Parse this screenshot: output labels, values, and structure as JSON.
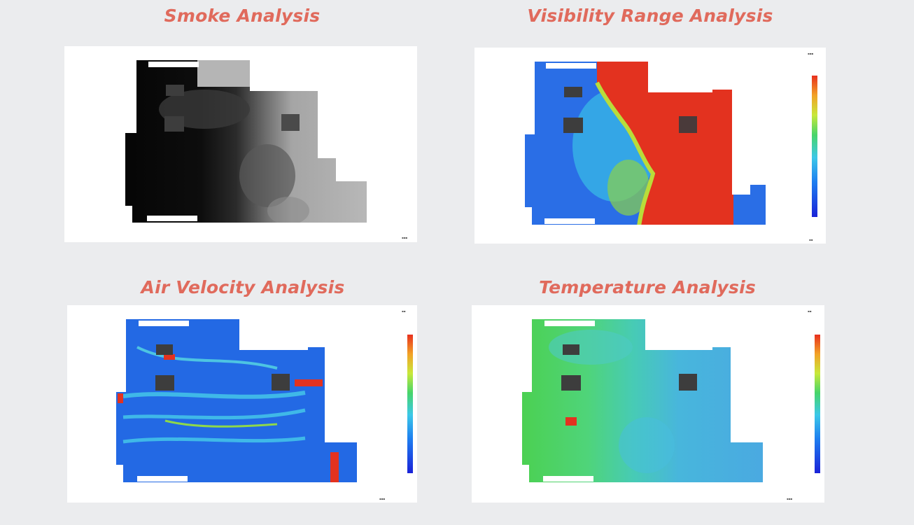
{
  "panels": {
    "smoke": {
      "title": "Smoke Analysis"
    },
    "visibility": {
      "title": "Visibility Range Analysis"
    },
    "air_velocity": {
      "title": "Air Velocity Analysis"
    },
    "temperature": {
      "title": "Temperature Analysis"
    }
  },
  "colors": {
    "title": "#e06a5c",
    "background": "#ebecee",
    "panel": "#ffffff",
    "scale": [
      "#1a22d8",
      "#1e7ff0",
      "#3cc8e8",
      "#47d56a",
      "#c8e83a",
      "#f2a226",
      "#e8301e"
    ]
  }
}
